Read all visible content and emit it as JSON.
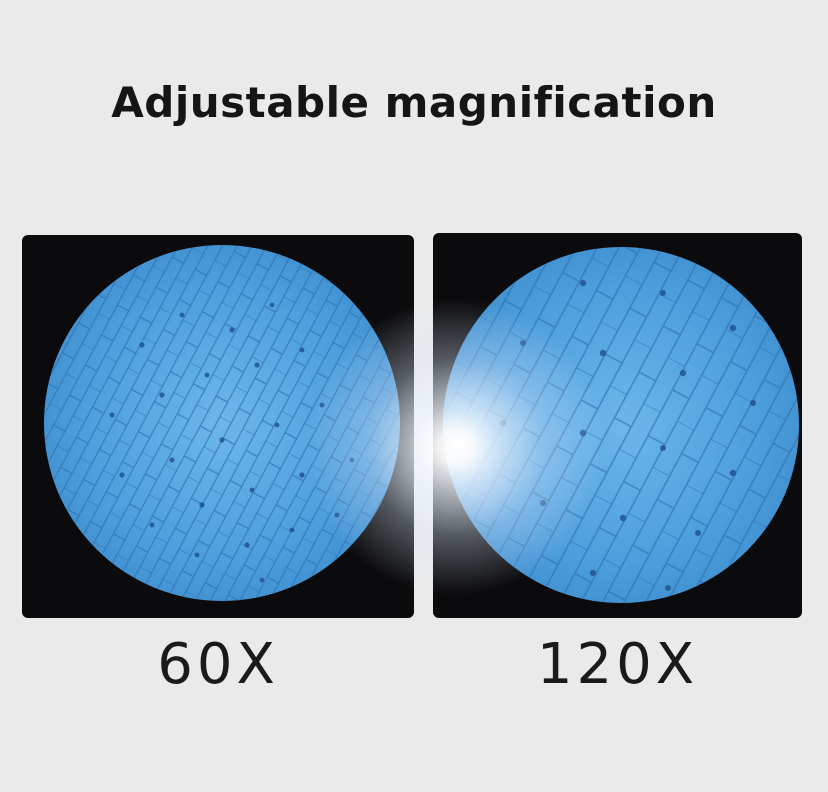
{
  "title": "Adjustable magnification",
  "views": [
    {
      "label": "60X",
      "magnification": 60
    },
    {
      "label": "120X",
      "magnification": 120
    }
  ],
  "colors": {
    "background": "#eaeaea",
    "panel": "#0b0b0d",
    "cell_field": "#4ea0de",
    "cell_wall": "#2d6fb0",
    "nucleus": "#1f4f8c",
    "text": "#151515"
  },
  "icons": [
    "microscope-view-60x",
    "microscope-view-120x",
    "light-glow"
  ]
}
